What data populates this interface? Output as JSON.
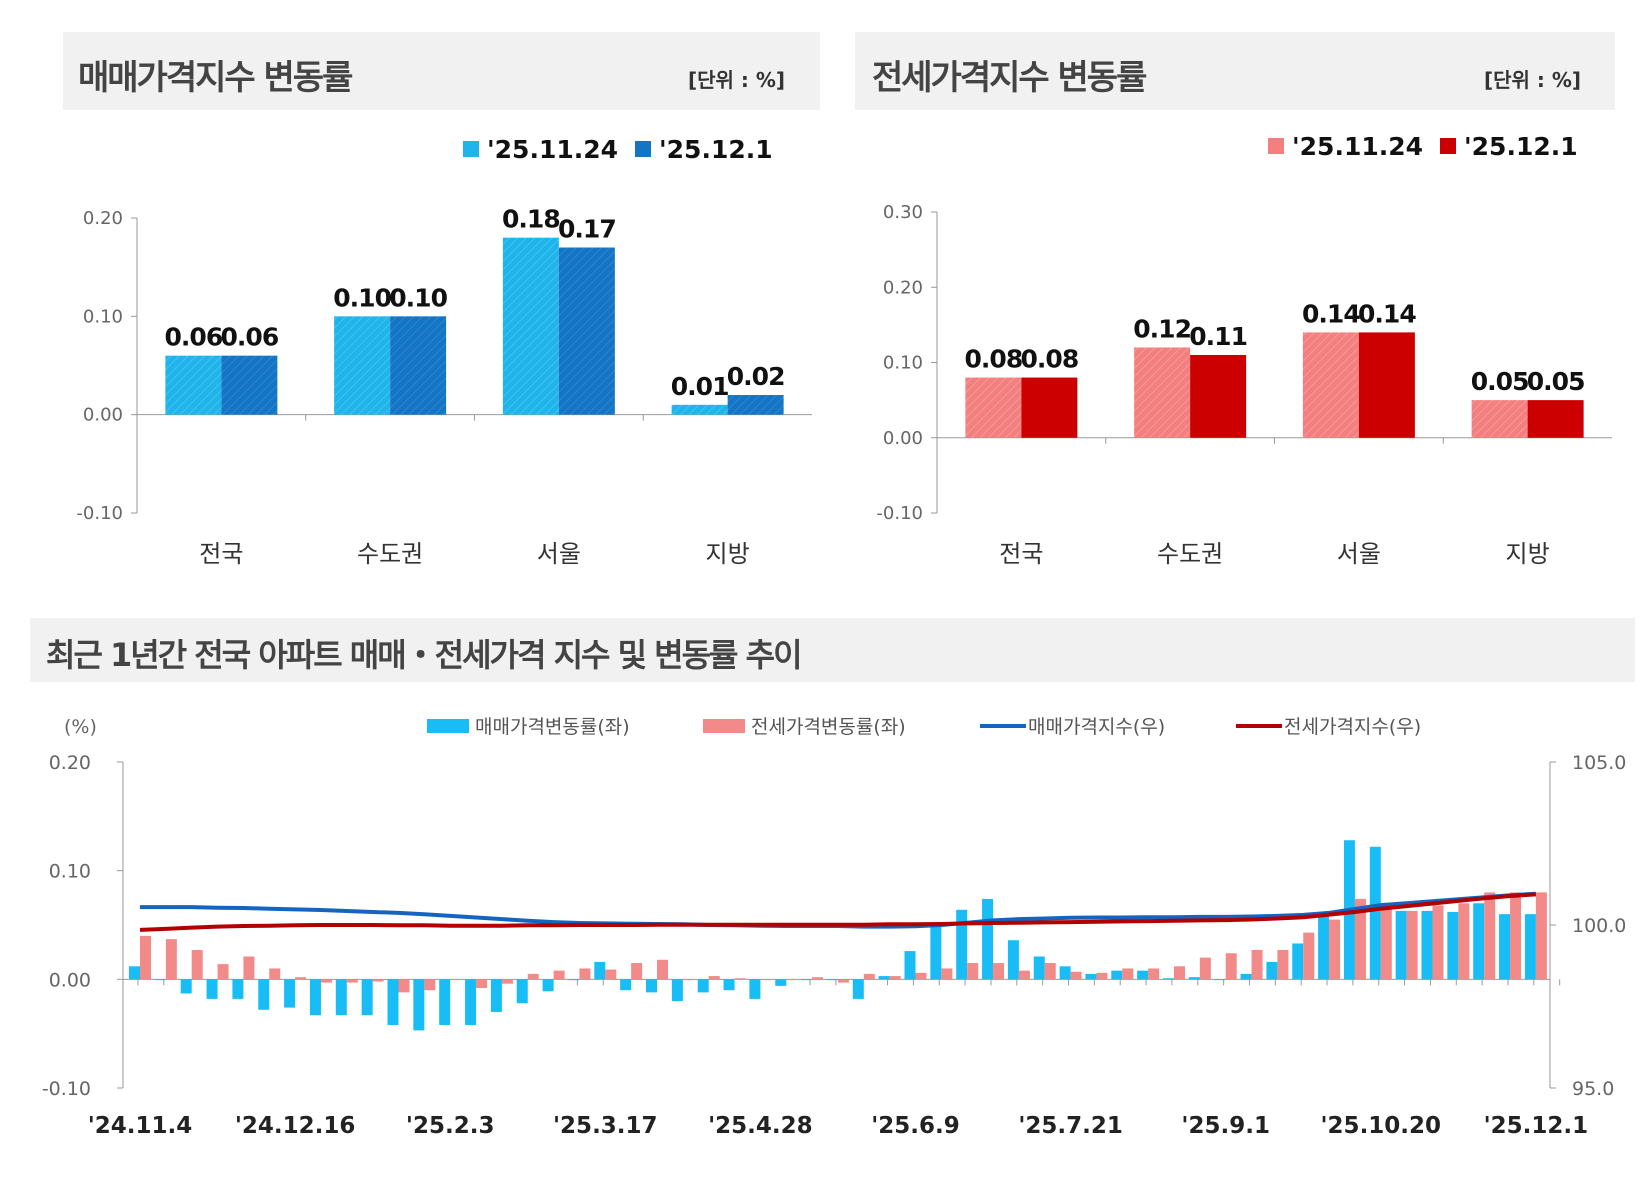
{
  "colors": {
    "sale_light": "#1fb4ea",
    "sale_dark": "#1575c5",
    "jeonse_light": "#f47f7f",
    "jeonse_dark": "#cc0000",
    "sale_index": "#1565c0",
    "jeonse_index": "#b30000",
    "bar_sale": "#19bdf5",
    "bar_jeonse": "#f38a8a"
  },
  "chart_data": [
    {
      "type": "bar",
      "title": "매매가격지수 변동률",
      "unit_label": "[단위 : %]",
      "categories": [
        "전국",
        "수도권",
        "서울",
        "지방"
      ],
      "series": [
        {
          "name": "'25.11.24",
          "values": [
            0.06,
            0.1,
            0.18,
            0.01
          ]
        },
        {
          "name": "'25.12.1",
          "values": [
            0.06,
            0.1,
            0.17,
            0.02
          ]
        }
      ],
      "data_labels": [
        [
          "0.06",
          "0.10",
          "0.18",
          "0.01"
        ],
        [
          "0.06",
          "0.10",
          "0.17",
          "0.02"
        ]
      ],
      "ylim": [
        -0.1,
        0.2
      ],
      "yticks": [
        "0.20",
        "0.10",
        "0.00",
        "-0.10"
      ],
      "legend": "top-right",
      "grid": false
    },
    {
      "type": "bar",
      "title": "전세가격지수 변동률",
      "unit_label": "[단위 : %]",
      "categories": [
        "전국",
        "수도권",
        "서울",
        "지방"
      ],
      "series": [
        {
          "name": "'25.11.24",
          "values": [
            0.08,
            0.12,
            0.14,
            0.05
          ]
        },
        {
          "name": "'25.12.1",
          "values": [
            0.08,
            0.11,
            0.14,
            0.05
          ]
        }
      ],
      "data_labels": [
        [
          "0.08",
          "0.12",
          "0.14",
          "0.05"
        ],
        [
          "0.08",
          "0.11",
          "0.14",
          "0.05"
        ]
      ],
      "ylim": [
        -0.1,
        0.3
      ],
      "yticks": [
        "0.30",
        "0.20",
        "0.10",
        "0.00",
        "-0.10"
      ],
      "legend": "top-right",
      "grid": false
    },
    {
      "type": "bar+line",
      "title": "최근 1년간 전국 아파트 매매・전세가격 지수 및 변동률 추이",
      "ylabel_left": "(%)",
      "ylim_left": [
        -0.1,
        0.2
      ],
      "yticks_left": [
        "0.20",
        "0.10",
        "0.00",
        "-0.10"
      ],
      "ylim_right": [
        95.0,
        105.0
      ],
      "yticks_right": [
        "105.0",
        "100.0",
        "95.0"
      ],
      "xtick_labels": [
        "'24.11.4",
        "'24.12.16",
        "'25.2.3",
        "'25.3.17",
        "'25.4.28",
        "'25.6.9",
        "'25.7.21",
        "'25.9.1",
        "'25.10.20",
        "'25.12.1"
      ],
      "legend": "top",
      "grid": false,
      "series": [
        {
          "name": "매매가격변동률(좌)",
          "type": "bar",
          "axis": "left",
          "values": [
            0.012,
            0,
            -0.013,
            -0.018,
            -0.018,
            -0.028,
            -0.026,
            -0.033,
            -0.033,
            -0.033,
            -0.042,
            -0.047,
            -0.042,
            -0.042,
            -0.03,
            -0.022,
            -0.011,
            0,
            0.016,
            -0.01,
            -0.012,
            -0.02,
            -0.012,
            -0.01,
            -0.018,
            -0.006,
            0,
            0,
            -0.018,
            0.003,
            0.026,
            0.05,
            0.064,
            0.074,
            0.036,
            0.021,
            0.012,
            0.005,
            0.008,
            0.008,
            0.001,
            0.002,
            0,
            0.005,
            0.016,
            0.033,
            0.06,
            0.128,
            0.122,
            0.063,
            0.063,
            0.062,
            0.07,
            0.06,
            0.06
          ]
        },
        {
          "name": "전세가격변동률(좌)",
          "type": "bar",
          "axis": "left",
          "values": [
            0.04,
            0.037,
            0.027,
            0.014,
            0.021,
            0.01,
            0.002,
            -0.003,
            -0.003,
            -0.002,
            -0.012,
            -0.01,
            0,
            -0.008,
            -0.004,
            0.005,
            0.008,
            0.01,
            0.009,
            0.015,
            0.018,
            0,
            0.003,
            0.001,
            0,
            0,
            0.002,
            -0.003,
            0.005,
            0.003,
            0.006,
            0.01,
            0.015,
            0.015,
            0.008,
            0.015,
            0.007,
            0.006,
            0.01,
            0.01,
            0.012,
            0.02,
            0.024,
            0.027,
            0.027,
            0.043,
            0.055,
            0.074,
            0.065,
            0.063,
            0.068,
            0.07,
            0.08,
            0.08,
            0.08
          ]
        },
        {
          "name": "매매가격지수(우)",
          "type": "line",
          "axis": "right",
          "values": [
            100.55,
            100.55,
            100.55,
            100.53,
            100.52,
            100.5,
            100.48,
            100.46,
            100.43,
            100.4,
            100.37,
            100.33,
            100.28,
            100.23,
            100.18,
            100.13,
            100.09,
            100.06,
            100.05,
            100.04,
            100.03,
            100.02,
            100.0,
            99.99,
            99.98,
            99.97,
            99.97,
            99.97,
            99.95,
            99.95,
            99.96,
            100.0,
            100.07,
            100.14,
            100.18,
            100.2,
            100.22,
            100.23,
            100.23,
            100.24,
            100.24,
            100.25,
            100.25,
            100.26,
            100.28,
            100.31,
            100.37,
            100.49,
            100.61,
            100.67,
            100.73,
            100.79,
            100.85,
            100.91,
            100.96
          ]
        },
        {
          "name": "전세가격지수(우)",
          "type": "line",
          "axis": "right",
          "values": [
            99.85,
            99.88,
            99.92,
            99.95,
            99.97,
            99.98,
            99.99,
            100.0,
            100.0,
            100.0,
            99.99,
            99.99,
            99.98,
            99.98,
            99.98,
            99.99,
            99.99,
            100.0,
            100.0,
            100.0,
            100.01,
            100.01,
            100.01,
            100.01,
            100.01,
            100.01,
            100.01,
            100.01,
            100.01,
            100.02,
            100.02,
            100.03,
            100.05,
            100.06,
            100.07,
            100.08,
            100.09,
            100.1,
            100.11,
            100.12,
            100.13,
            100.14,
            100.15,
            100.17,
            100.2,
            100.24,
            100.32,
            100.4,
            100.5,
            100.58,
            100.66,
            100.74,
            100.82,
            100.89,
            100.94
          ]
        }
      ]
    }
  ]
}
